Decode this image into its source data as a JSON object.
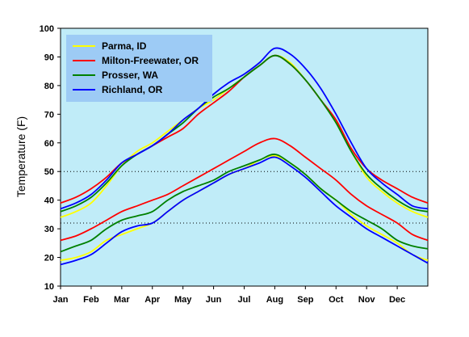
{
  "chart_data": {
    "type": "line",
    "title": "",
    "xlabel": "",
    "ylabel": "Temperature (F)",
    "ylim": [
      10,
      100
    ],
    "yticks": [
      10,
      20,
      30,
      40,
      50,
      60,
      70,
      80,
      90,
      100
    ],
    "xlim": [
      0,
      12
    ],
    "month_ticks": [
      "Jan",
      "Feb",
      "Mar",
      "Apr",
      "May",
      "Jun",
      "Jul",
      "Aug",
      "Sep",
      "Oct",
      "Nov",
      "Dec"
    ],
    "reference_lines": [
      50,
      32
    ],
    "plot_background": "#c0ecf8",
    "legend_background": "#9dcbf5",
    "legend_position": "top-left",
    "x": [
      0,
      0.5,
      1,
      1.5,
      2,
      2.5,
      3,
      3.5,
      4,
      4.5,
      5,
      5.5,
      6,
      6.5,
      7,
      7.5,
      8,
      8.5,
      9,
      9.5,
      10,
      10.5,
      11,
      11.5,
      12
    ],
    "series": [
      {
        "name": "Parma, ID",
        "color": "#ffff00",
        "high": [
          34,
          36,
          39,
          45,
          52,
          57,
          60,
          64,
          68,
          72,
          75,
          79,
          83,
          87,
          90.5,
          88,
          82,
          75,
          67,
          57,
          48,
          43,
          39,
          36,
          34
        ],
        "low": [
          19,
          20,
          22,
          26,
          28,
          30,
          32,
          36,
          40,
          43,
          46,
          49,
          51,
          54,
          55.5,
          53,
          49,
          44,
          40,
          35,
          31,
          28,
          25,
          21,
          19
        ]
      },
      {
        "name": "Milton-Freewater, OR",
        "color": "#ff0000",
        "high": [
          39,
          41,
          44,
          48,
          53,
          56,
          59,
          62,
          65,
          70,
          74,
          78,
          83,
          87,
          90.5,
          87.5,
          82,
          75,
          68,
          58,
          51,
          47,
          44,
          41,
          39
        ],
        "low": [
          26,
          27.5,
          30,
          33,
          36,
          38,
          40,
          42,
          45,
          48,
          51,
          54,
          57,
          60,
          61.5,
          59,
          55,
          51,
          47,
          42,
          38,
          35,
          32,
          28,
          26
        ]
      },
      {
        "name": "Prosser, WA",
        "color": "#008000",
        "high": [
          36,
          38,
          41,
          46,
          52,
          56,
          59,
          63,
          67,
          72,
          76,
          79,
          83,
          87,
          90.5,
          87.5,
          82,
          75,
          67,
          57,
          49,
          44,
          40,
          37,
          36
        ],
        "low": [
          22,
          24,
          26,
          30,
          33,
          34.5,
          36,
          40,
          43,
          45,
          47,
          50,
          52,
          54,
          56,
          53,
          49,
          44,
          40,
          36,
          33,
          30,
          26,
          24,
          23
        ]
      },
      {
        "name": "Richland, OR",
        "color": "#0000ff",
        "high": [
          37,
          39,
          42,
          47,
          53,
          56,
          59,
          63,
          68,
          72,
          77,
          81,
          84,
          88,
          93,
          91,
          86,
          79,
          70,
          60,
          51,
          46,
          42,
          38,
          37
        ],
        "low": [
          17.5,
          19,
          21,
          25,
          29,
          31,
          32,
          36,
          40,
          43,
          46,
          49,
          51,
          53,
          55,
          52,
          48,
          43,
          38,
          34,
          30,
          27,
          24,
          21,
          18
        ]
      }
    ]
  }
}
